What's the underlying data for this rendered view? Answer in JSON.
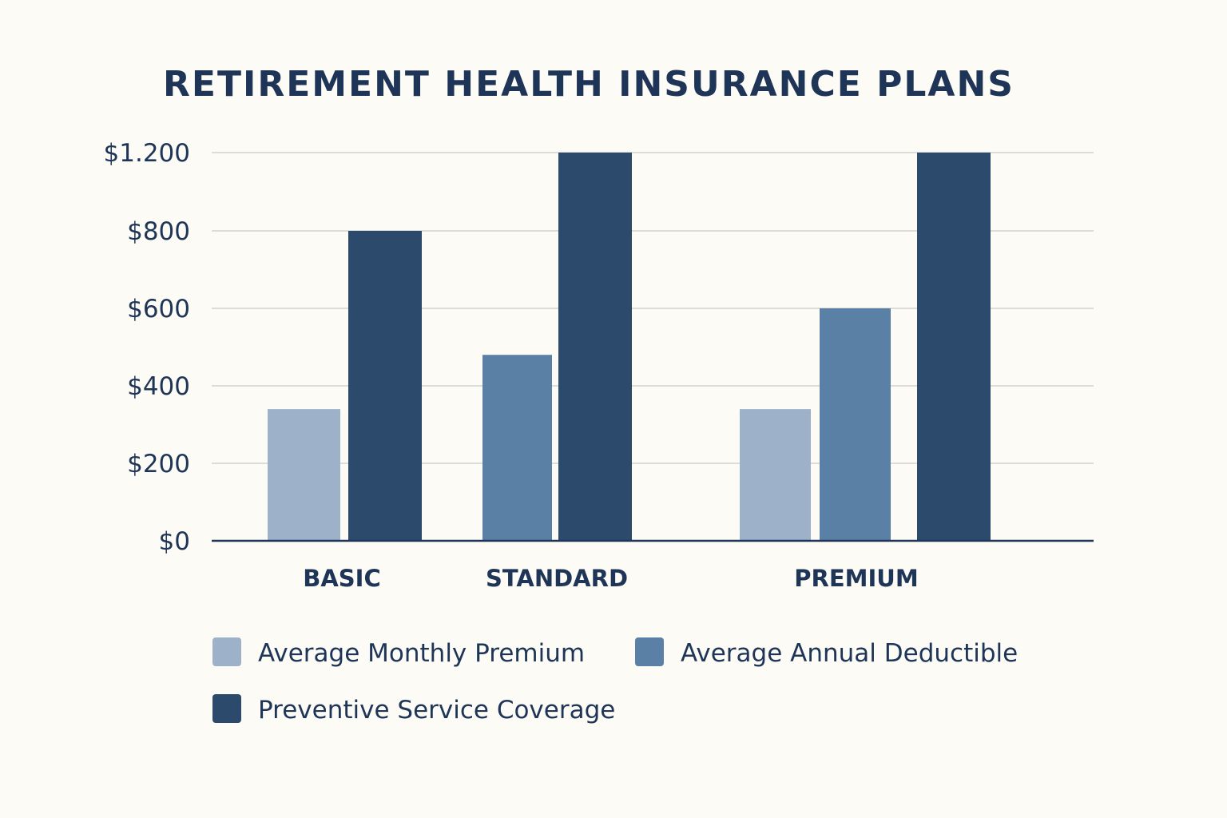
{
  "chart_data": {
    "type": "bar",
    "title": "RETIREMENT HEALTH INSURANCE PLANS",
    "xlabel": "",
    "ylabel": "",
    "categories": [
      "BASIC",
      "STANDARD",
      "PREMIUM"
    ],
    "y_ticks": [
      {
        "value": 0,
        "label": "$0"
      },
      {
        "value": 200,
        "label": "$200"
      },
      {
        "value": 400,
        "label": "$400"
      },
      {
        "value": 600,
        "label": "$600"
      },
      {
        "value": 800,
        "label": "$800"
      },
      {
        "value": 1200,
        "label": "$1.200"
      }
    ],
    "ylim": [
      0,
      1200
    ],
    "grid": true,
    "legend_position": "bottom",
    "series": [
      {
        "name": "Average Monthly Premium",
        "color": "#9db2c8",
        "values": [
          340,
          null,
          340
        ]
      },
      {
        "name": "Average Annual Deductible",
        "color": "#5b80a5",
        "values": [
          null,
          480,
          600
        ]
      },
      {
        "name": "Preventive Service Coverage",
        "color": "#2c4a6b",
        "values": [
          800,
          1200,
          1200
        ]
      }
    ]
  }
}
